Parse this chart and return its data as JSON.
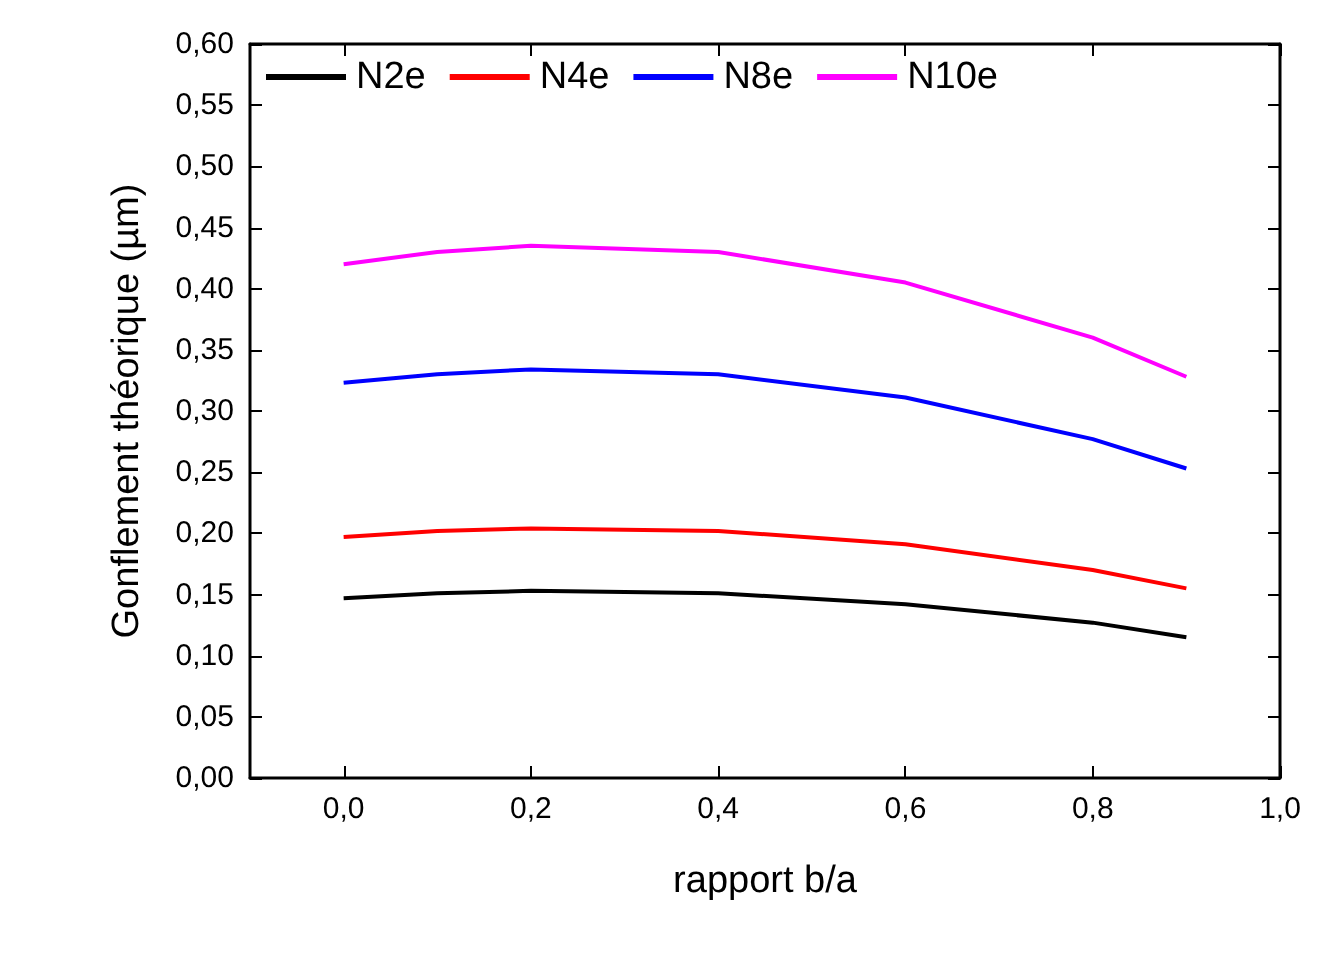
{
  "chart_data": {
    "type": "line",
    "xlabel": "rapport b/a",
    "ylabel": "Gonflement théorique (µm)",
    "x": [
      0,
      0.1,
      0.2,
      0.4,
      0.6,
      0.8,
      0.9
    ],
    "series": [
      {
        "name": "N2e",
        "color": "#000000",
        "values": [
          0.147,
          0.151,
          0.153,
          0.151,
          0.142,
          0.127,
          0.115
        ]
      },
      {
        "name": "N4e",
        "color": "#ff0000",
        "values": [
          0.197,
          0.202,
          0.204,
          0.202,
          0.191,
          0.17,
          0.155
        ]
      },
      {
        "name": "N8e",
        "color": "#0000ff",
        "values": [
          0.323,
          0.33,
          0.334,
          0.33,
          0.311,
          0.277,
          0.253
        ]
      },
      {
        "name": "N10e",
        "color": "#ff00ff",
        "values": [
          0.42,
          0.43,
          0.435,
          0.43,
          0.405,
          0.36,
          0.328
        ]
      }
    ],
    "xlim": [
      -0.1,
      1.0
    ],
    "ylim": [
      0,
      0.6
    ],
    "xticks": [
      {
        "value": 0,
        "label": "0,0"
      },
      {
        "value": 0.2,
        "label": "0,2"
      },
      {
        "value": 0.4,
        "label": "0,4"
      },
      {
        "value": 0.6,
        "label": "0,6"
      },
      {
        "value": 0.8,
        "label": "0,8"
      },
      {
        "value": 1,
        "label": "1,0"
      }
    ],
    "yticks": [
      {
        "value": 0,
        "label": "0,00"
      },
      {
        "value": 0.05,
        "label": "0,05"
      },
      {
        "value": 0.1,
        "label": "0,10"
      },
      {
        "value": 0.15,
        "label": "0,15"
      },
      {
        "value": 0.2,
        "label": "0,20"
      },
      {
        "value": 0.25,
        "label": "0,25"
      },
      {
        "value": 0.3,
        "label": "0,30"
      },
      {
        "value": 0.35,
        "label": "0,35"
      },
      {
        "value": 0.4,
        "label": "0,40"
      },
      {
        "value": 0.45,
        "label": "0,45"
      },
      {
        "value": 0.5,
        "label": "0,50"
      },
      {
        "value": 0.55,
        "label": "0,55"
      },
      {
        "value": 0.6,
        "label": "0,60"
      }
    ],
    "legend": "top",
    "marker": "none",
    "line_style": "solid",
    "grid": false
  }
}
